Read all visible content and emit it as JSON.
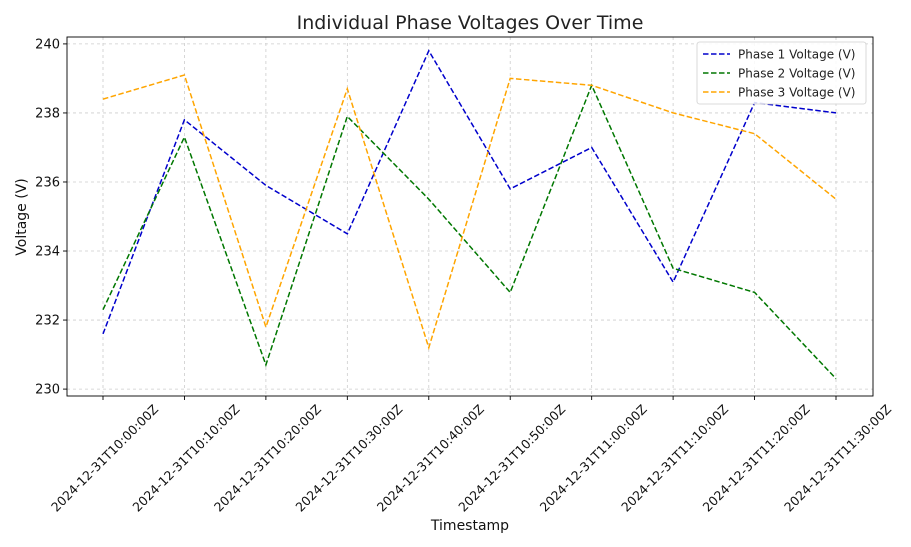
{
  "chart_data": {
    "type": "line",
    "title": "Individual Phase Voltages Over Time",
    "xlabel": "Timestamp",
    "ylabel": "Voltage (V)",
    "categories": [
      "2024-12-31T10:00:00Z",
      "2024-12-31T10:10:00Z",
      "2024-12-31T10:20:00Z",
      "2024-12-31T10:30:00Z",
      "2024-12-31T10:40:00Z",
      "2024-12-31T10:50:00Z",
      "2024-12-31T11:00:00Z",
      "2024-12-31T11:10:00Z",
      "2024-12-31T11:20:00Z",
      "2024-12-31T11:30:00Z"
    ],
    "ylim": [
      229.8,
      240.2
    ],
    "yticks": [
      230,
      232,
      234,
      236,
      238,
      240
    ],
    "grid": true,
    "legend_position": "top-right",
    "series": [
      {
        "name": "Phase 1 Voltage (V)",
        "color": "#0000cc",
        "values": [
          231.6,
          237.8,
          235.9,
          234.5,
          239.8,
          235.8,
          237.0,
          233.1,
          238.3,
          238.0
        ]
      },
      {
        "name": "Phase 2 Voltage (V)",
        "color": "#007700",
        "values": [
          232.3,
          237.3,
          230.7,
          237.9,
          235.5,
          232.8,
          238.8,
          233.5,
          232.8,
          230.3
        ]
      },
      {
        "name": "Phase 3 Voltage (V)",
        "color": "#ffa500",
        "values": [
          238.4,
          239.1,
          231.8,
          238.7,
          231.2,
          239.0,
          238.8,
          238.0,
          237.4,
          235.5
        ]
      }
    ]
  }
}
